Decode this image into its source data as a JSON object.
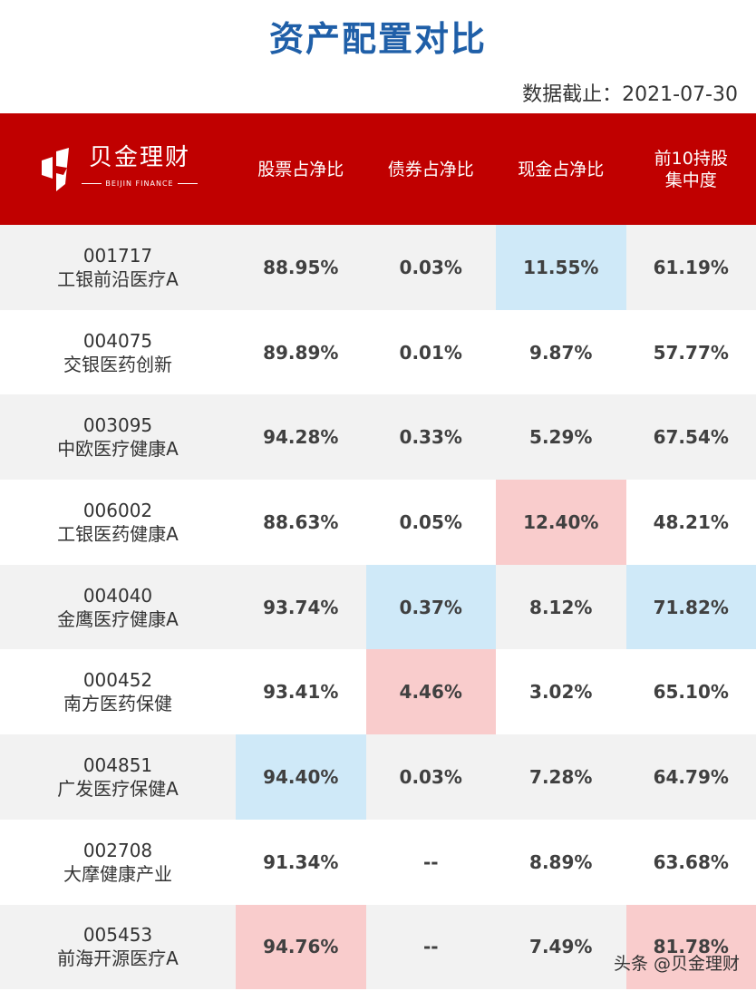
{
  "title": "资产配置对比",
  "date_label": "数据截止：2021-07-30",
  "logo": {
    "text": "贝金理财",
    "sub": "BEIJIN FINANCE"
  },
  "headers": [
    "股票占净比",
    "债券占净比",
    "现金占净比",
    "前10持股\n集中度"
  ],
  "colors": {
    "header_bg": "#c00000",
    "title": "#1f5fa8",
    "highlight_blue": "#cfe9f8",
    "highlight_red": "#f9cccc"
  },
  "rows": [
    {
      "code": "001717",
      "name": "工银前沿医疗A",
      "stock": "88.95%",
      "bond": "0.03%",
      "cash": "11.55%",
      "top10": "61.19%",
      "hl": {
        "cash": "blue"
      }
    },
    {
      "code": "004075",
      "name": "交银医药创新",
      "stock": "89.89%",
      "bond": "0.01%",
      "cash": "9.87%",
      "top10": "57.77%",
      "hl": {}
    },
    {
      "code": "003095",
      "name": "中欧医疗健康A",
      "stock": "94.28%",
      "bond": "0.33%",
      "cash": "5.29%",
      "top10": "67.54%",
      "hl": {}
    },
    {
      "code": "006002",
      "name": "工银医药健康A",
      "stock": "88.63%",
      "bond": "0.05%",
      "cash": "12.40%",
      "top10": "48.21%",
      "hl": {
        "cash": "red"
      }
    },
    {
      "code": "004040",
      "name": "金鹰医疗健康A",
      "stock": "93.74%",
      "bond": "0.37%",
      "cash": "8.12%",
      "top10": "71.82%",
      "hl": {
        "bond": "blue",
        "top10": "blue"
      }
    },
    {
      "code": "000452",
      "name": "南方医药保健",
      "stock": "93.41%",
      "bond": "4.46%",
      "cash": "3.02%",
      "top10": "65.10%",
      "hl": {
        "bond": "red"
      }
    },
    {
      "code": "004851",
      "name": "广发医疗保健A",
      "stock": "94.40%",
      "bond": "0.03%",
      "cash": "7.28%",
      "top10": "64.79%",
      "hl": {
        "stock": "blue"
      }
    },
    {
      "code": "002708",
      "name": "大摩健康产业",
      "stock": "91.34%",
      "bond": "--",
      "cash": "8.89%",
      "top10": "63.68%",
      "hl": {}
    },
    {
      "code": "005453",
      "name": "前海开源医疗A",
      "stock": "94.76%",
      "bond": "--",
      "cash": "7.49%",
      "top10": "81.78%",
      "hl": {
        "stock": "red",
        "top10": "red"
      }
    }
  ],
  "watermark": "头条 @贝金理财"
}
